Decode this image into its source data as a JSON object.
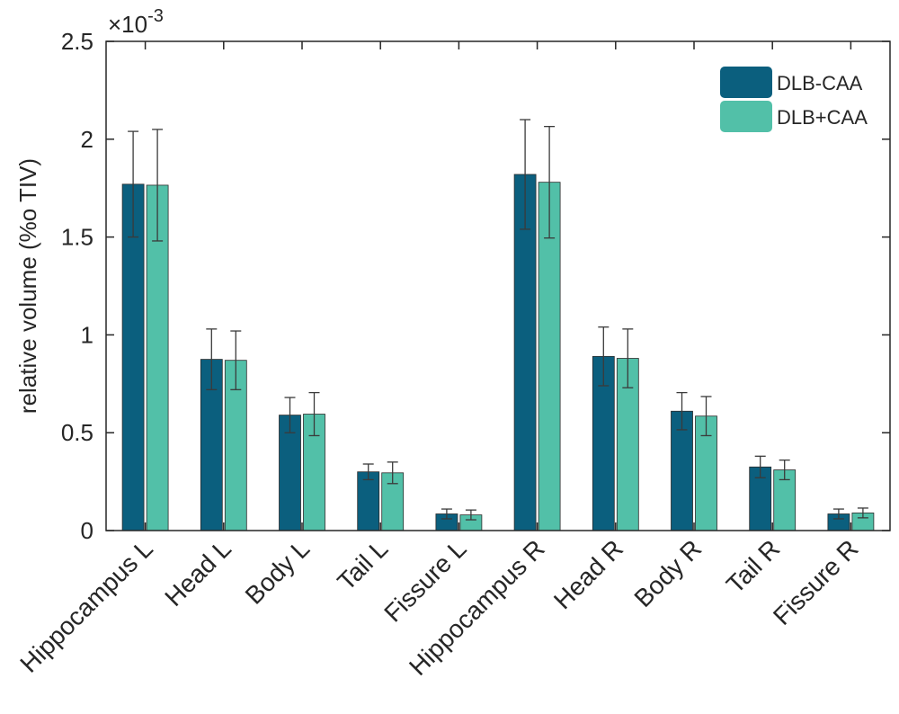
{
  "chart_data": {
    "type": "bar",
    "title": "",
    "xlabel": "",
    "ylabel": "relative volume (%o TIV)",
    "y_multiplier_label": {
      "base": "×10",
      "exponent": "-3"
    },
    "ylim": [
      0,
      2.5
    ],
    "yticks": [
      0,
      0.5,
      1,
      1.5,
      2,
      2.5
    ],
    "ytick_labels": [
      "0",
      "0.5",
      "1",
      "1.5",
      "2",
      "2.5"
    ],
    "grid": false,
    "legend_position": "top-right",
    "categories": [
      "Hippocampus L",
      "Head L",
      "Body L",
      "Tail L",
      "Fissure L",
      "Hippocampus R",
      "Head R",
      "Body R",
      "Tail R",
      "Fissure R"
    ],
    "series": [
      {
        "name": "DLB-CAA",
        "color": "#0b5f7e",
        "values": [
          1.77,
          0.875,
          0.59,
          0.3,
          0.085,
          1.82,
          0.89,
          0.61,
          0.325,
          0.085
        ],
        "errors": [
          0.27,
          0.155,
          0.09,
          0.04,
          0.025,
          0.28,
          0.15,
          0.095,
          0.055,
          0.025
        ]
      },
      {
        "name": "DLB+CAA",
        "color": "#52c0a8",
        "values": [
          1.765,
          0.87,
          0.595,
          0.295,
          0.08,
          1.78,
          0.88,
          0.585,
          0.31,
          0.09
        ],
        "errors": [
          0.285,
          0.15,
          0.11,
          0.055,
          0.025,
          0.285,
          0.15,
          0.1,
          0.05,
          0.025
        ]
      }
    ]
  }
}
